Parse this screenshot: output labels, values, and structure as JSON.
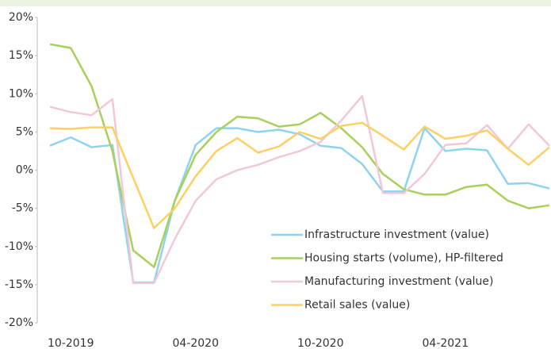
{
  "chart_data": {
    "type": "line",
    "categories": [
      null,
      "10-2019",
      null,
      null,
      null,
      null,
      null,
      "04-2020",
      null,
      null,
      null,
      null,
      null,
      "10-2020",
      null,
      null,
      null,
      null,
      null,
      "04-2021",
      null,
      null,
      null,
      null,
      null
    ],
    "ylim": [
      -20,
      20
    ],
    "yticks": [
      {
        "value": -20,
        "label": "-20%"
      },
      {
        "value": -15,
        "label": "-15%"
      },
      {
        "value": -10,
        "label": "-10%"
      },
      {
        "value": -5,
        "label": "-5%"
      },
      {
        "value": 0,
        "label": "0%"
      },
      {
        "value": 5,
        "label": "5%"
      },
      {
        "value": 10,
        "label": "10%"
      },
      {
        "value": 15,
        "label": "15%"
      },
      {
        "value": 20,
        "label": "20%"
      }
    ],
    "grid": false,
    "legend": "lower-right",
    "series": [
      {
        "name": "Infrastructure investment (value)",
        "color": "#8fd3f0",
        "values": [
          3.2,
          4.3,
          3,
          3.3,
          -14.7,
          -14.7,
          -4,
          3.3,
          5.5,
          5.5,
          5,
          5.3,
          4.7,
          3.2,
          2.9,
          0.8,
          -2.8,
          -2.8,
          5.5,
          2.5,
          2.8,
          2.6,
          -1.8,
          -1.7,
          -2.4
        ]
      },
      {
        "name": "Housing starts (volume), HP-filtered",
        "color": "#a8d05a",
        "values": [
          16.5,
          16,
          11,
          2.5,
          -10.5,
          -12.7,
          -4,
          2,
          5,
          7,
          6.8,
          5.7,
          6,
          7.5,
          5.5,
          3,
          -0.5,
          -2.5,
          -3.2,
          -3.2,
          -2.2,
          -1.9,
          -4,
          -5,
          -4.6
        ]
      },
      {
        "name": "Manufacturing investment (value)",
        "color": "#f0c8d8",
        "values": [
          8.3,
          7.6,
          7.2,
          9.3,
          -14.8,
          -14.8,
          -9,
          -4,
          -1.2,
          0,
          0.7,
          1.7,
          2.5,
          3.7,
          6.5,
          9.7,
          -3,
          -3,
          -0.5,
          3.3,
          3.5,
          5.9,
          2.8,
          6,
          3.2
        ]
      },
      {
        "name": "Retail sales (value)",
        "color": "#fcd063",
        "values": [
          5.5,
          5.4,
          5.6,
          5.6,
          -1,
          -7.6,
          -5,
          -0.8,
          2.5,
          4.2,
          2.3,
          3.1,
          5,
          4.1,
          5.8,
          6.2,
          4.5,
          2.7,
          5.7,
          4.1,
          4.5,
          5.2,
          2.8,
          0.7,
          3
        ]
      }
    ]
  }
}
